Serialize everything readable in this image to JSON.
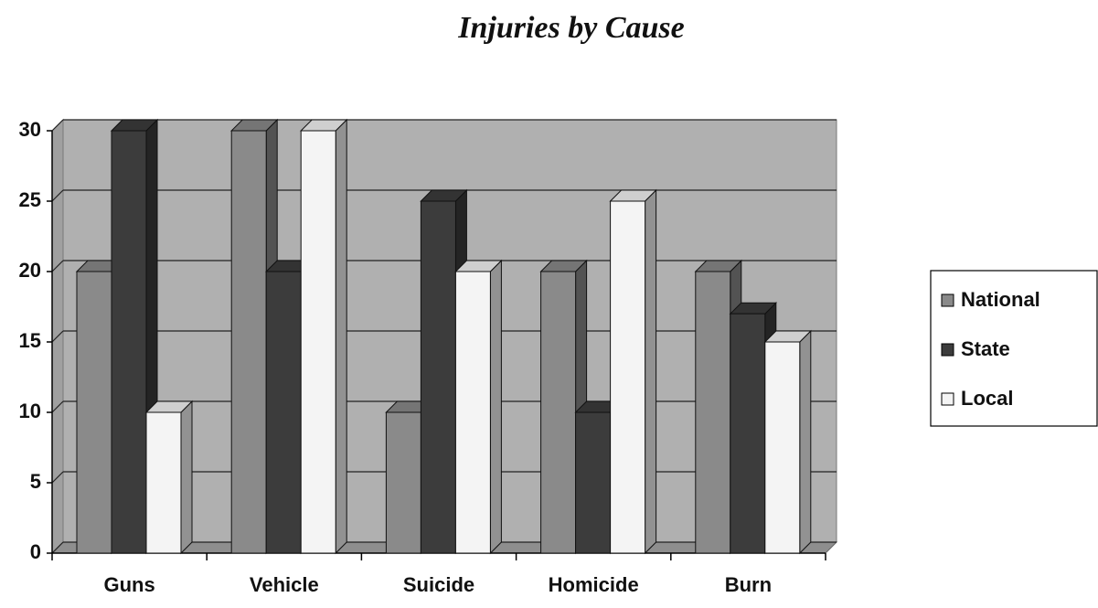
{
  "chart_data": {
    "type": "bar3d",
    "title": "Injuries by Cause",
    "categories": [
      "Guns",
      "Vehicle",
      "Suicide",
      "Homicide",
      "Burn"
    ],
    "series": [
      {
        "name": "National",
        "color": "#8a8a8a",
        "values": [
          20,
          30,
          10,
          20,
          20
        ]
      },
      {
        "name": "State",
        "color": "#3c3c3c",
        "values": [
          30,
          20,
          25,
          10,
          17
        ]
      },
      {
        "name": "Local",
        "color": "#f4f4f4",
        "values": [
          10,
          30,
          20,
          25,
          15
        ]
      }
    ],
    "ylim": [
      0,
      30
    ],
    "yticks": [
      0,
      5,
      10,
      15,
      20,
      25,
      30
    ],
    "grid": true,
    "legend": "right"
  }
}
